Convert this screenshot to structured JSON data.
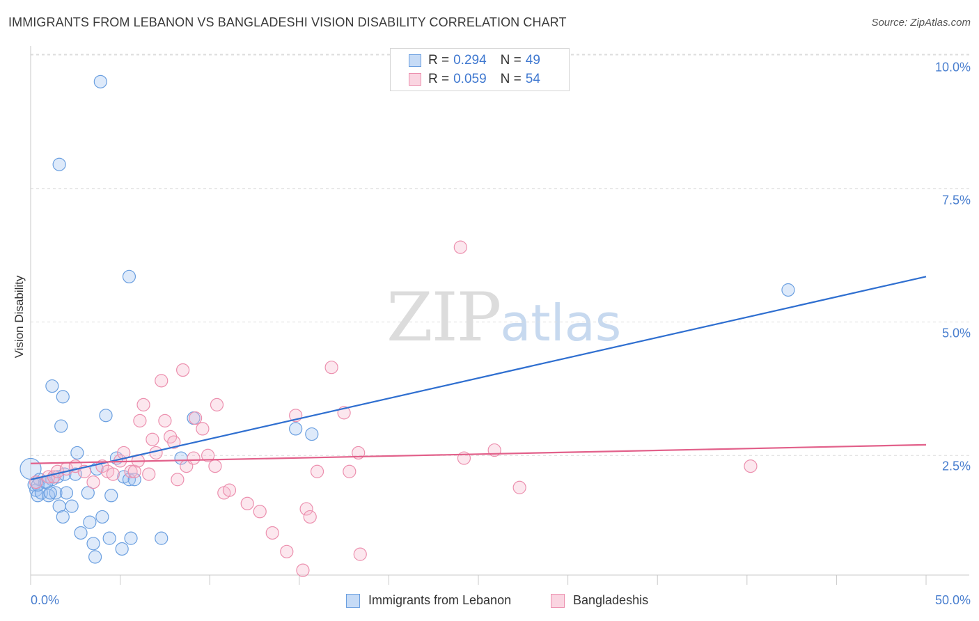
{
  "title": "IMMIGRANTS FROM LEBANON VS BANGLADESHI VISION DISABILITY CORRELATION CHART",
  "source": "Source: ZipAtlas.com",
  "watermark": {
    "zip": "ZIP",
    "atlas": "atlas"
  },
  "chart_data": {
    "type": "scatter",
    "title": "IMMIGRANTS FROM LEBANON VS BANGLADESHI VISION DISABILITY CORRELATION CHART",
    "xlabel": "",
    "ylabel": "Vision Disability",
    "xlim": [
      0,
      50
    ],
    "ylim": [
      0,
      10.5
    ],
    "x_tick_labels": [
      "0.0%",
      "50.0%"
    ],
    "y_ticks": [
      {
        "value": 2.5,
        "label": "2.5%"
      },
      {
        "value": 5.0,
        "label": "5.0%"
      },
      {
        "value": 7.5,
        "label": "7.5%"
      },
      {
        "value": 10.0,
        "label": "10.0%"
      }
    ],
    "grid": true,
    "legend": {
      "position": "top-center",
      "entries": [
        {
          "r_label": "R =",
          "r_value": "0.294",
          "n_label": "N =",
          "n_value": "49"
        },
        {
          "r_label": "R =",
          "r_value": "0.059",
          "n_label": "N =",
          "n_value": "54"
        }
      ]
    },
    "series": [
      {
        "name": "Immigrants from Lebanon",
        "color": "#6a9fe0",
        "fill": "rgba(160,195,240,0.35)",
        "line_color": "#2f6fd0",
        "trend": {
          "x": [
            0,
            50
          ],
          "y": [
            2.05,
            5.85
          ]
        },
        "points": [
          [
            0.0,
            2.25
          ],
          [
            0.2,
            1.95
          ],
          [
            0.3,
            1.85
          ],
          [
            0.4,
            1.75
          ],
          [
            0.5,
            2.05
          ],
          [
            0.6,
            1.8
          ],
          [
            0.8,
            2.0
          ],
          [
            1.0,
            1.75
          ],
          [
            1.2,
            2.05
          ],
          [
            1.4,
            1.8
          ],
          [
            1.5,
            2.1
          ],
          [
            1.6,
            1.55
          ],
          [
            1.8,
            1.35
          ],
          [
            1.9,
            2.15
          ],
          [
            2.0,
            1.8
          ],
          [
            2.3,
            1.55
          ],
          [
            2.5,
            2.15
          ],
          [
            2.6,
            2.55
          ],
          [
            2.8,
            1.05
          ],
          [
            1.2,
            3.8
          ],
          [
            1.8,
            3.6
          ],
          [
            1.7,
            3.05
          ],
          [
            1.6,
            7.95
          ],
          [
            3.2,
            1.8
          ],
          [
            3.3,
            1.25
          ],
          [
            3.5,
            0.85
          ],
          [
            3.6,
            0.6
          ],
          [
            3.7,
            2.25
          ],
          [
            4.0,
            1.35
          ],
          [
            4.5,
            1.75
          ],
          [
            4.8,
            2.45
          ],
          [
            5.2,
            2.1
          ],
          [
            5.5,
            2.05
          ],
          [
            5.8,
            2.05
          ],
          [
            3.9,
            9.5
          ],
          [
            4.2,
            3.25
          ],
          [
            4.4,
            0.95
          ],
          [
            5.5,
            5.85
          ],
          [
            5.1,
            0.75
          ],
          [
            5.6,
            0.95
          ],
          [
            7.3,
            0.95
          ],
          [
            8.4,
            2.45
          ],
          [
            9.1,
            3.2
          ],
          [
            14.8,
            3.0
          ],
          [
            15.7,
            2.9
          ],
          [
            42.3,
            5.6
          ],
          [
            0.4,
            1.95
          ],
          [
            0.9,
            2.0
          ],
          [
            1.1,
            1.8
          ]
        ]
      },
      {
        "name": "Bangladeshis",
        "color": "#ec8fae",
        "fill": "rgba(247,185,205,0.35)",
        "line_color": "#e2608a",
        "trend": {
          "x": [
            0,
            50
          ],
          "y": [
            2.35,
            2.7
          ]
        },
        "points": [
          [
            0.3,
            2.0
          ],
          [
            1.0,
            2.1
          ],
          [
            1.3,
            2.1
          ],
          [
            1.5,
            2.2
          ],
          [
            2.0,
            2.25
          ],
          [
            2.5,
            2.3
          ],
          [
            3.0,
            2.2
          ],
          [
            3.5,
            2.0
          ],
          [
            4.0,
            2.3
          ],
          [
            4.3,
            2.2
          ],
          [
            4.6,
            2.15
          ],
          [
            5.0,
            2.4
          ],
          [
            5.2,
            2.55
          ],
          [
            5.6,
            2.2
          ],
          [
            5.8,
            2.2
          ],
          [
            6.0,
            2.4
          ],
          [
            6.1,
            3.15
          ],
          [
            6.3,
            3.45
          ],
          [
            6.6,
            2.15
          ],
          [
            6.8,
            2.8
          ],
          [
            7.0,
            2.55
          ],
          [
            7.3,
            3.9
          ],
          [
            7.5,
            3.15
          ],
          [
            7.8,
            2.85
          ],
          [
            8.0,
            2.75
          ],
          [
            8.2,
            2.05
          ],
          [
            8.5,
            4.1
          ],
          [
            8.7,
            2.3
          ],
          [
            9.1,
            2.45
          ],
          [
            9.2,
            3.2
          ],
          [
            9.6,
            3.0
          ],
          [
            9.9,
            2.5
          ],
          [
            10.3,
            2.3
          ],
          [
            10.4,
            3.45
          ],
          [
            10.8,
            1.8
          ],
          [
            11.1,
            1.85
          ],
          [
            12.1,
            1.6
          ],
          [
            12.8,
            1.45
          ],
          [
            13.5,
            1.05
          ],
          [
            14.3,
            0.7
          ],
          [
            14.8,
            3.25
          ],
          [
            15.2,
            0.35
          ],
          [
            15.4,
            1.5
          ],
          [
            15.6,
            1.35
          ],
          [
            16.0,
            2.2
          ],
          [
            16.8,
            4.15
          ],
          [
            17.5,
            3.3
          ],
          [
            17.8,
            2.2
          ],
          [
            18.3,
            2.55
          ],
          [
            18.4,
            0.65
          ],
          [
            24.0,
            6.4
          ],
          [
            24.2,
            2.45
          ],
          [
            25.9,
            2.6
          ],
          [
            27.3,
            1.9
          ]
        ]
      }
    ],
    "bangladeshi_extra_points": [
      [
        40.2,
        2.3
      ]
    ]
  },
  "bottom_legend": [
    "Immigrants from Lebanon",
    "Bangladeshis"
  ],
  "colors": {
    "blue": "#4a7fcf",
    "grid": "#dcdcdc",
    "axis": "#c8c8c8"
  }
}
